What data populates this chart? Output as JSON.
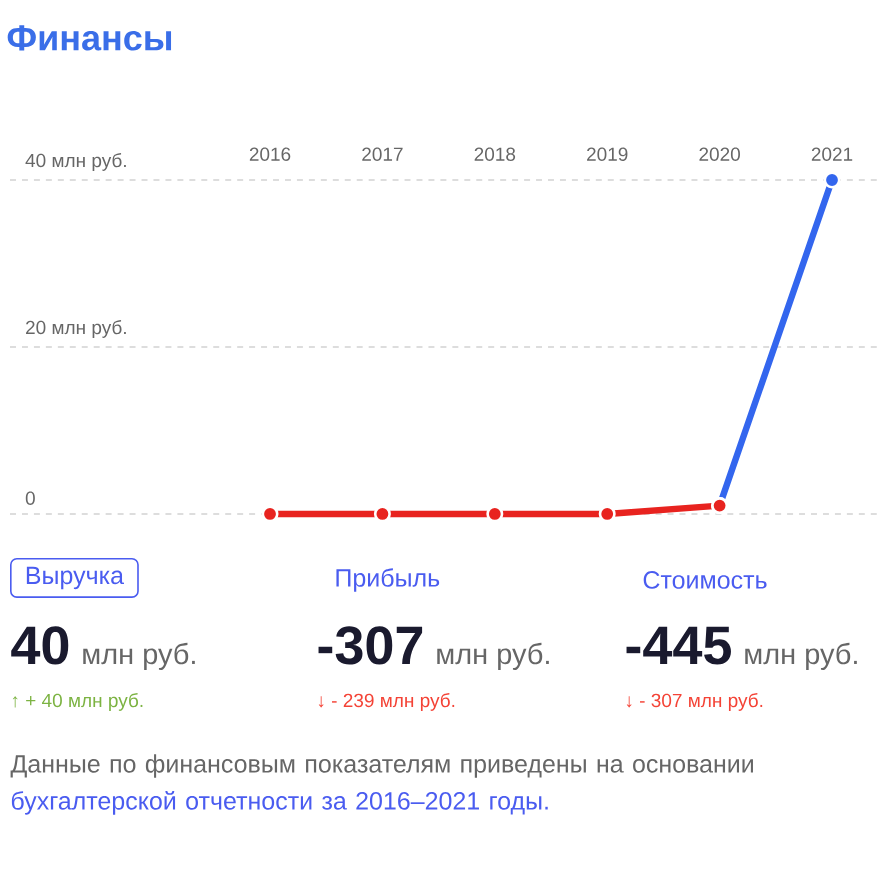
{
  "chart_data": {
    "type": "line",
    "title": "Финансы",
    "categories": [
      "2016",
      "2017",
      "2018",
      "2019",
      "2020",
      "2021"
    ],
    "series": [
      {
        "color": "#3366ee",
        "values": [
          null,
          null,
          null,
          null,
          1,
          40
        ]
      },
      {
        "color": "#e8231f",
        "values": [
          0,
          0,
          0,
          0,
          1,
          null
        ]
      }
    ],
    "ylim": [
      0,
      40
    ],
    "yticks": [
      0,
      {
        "value": 20,
        "label": "20 млн руб."
      },
      {
        "value": 40,
        "label": "40 млн руб."
      }
    ],
    "grid": "y",
    "marker": "circle",
    "line_style": "solid",
    "annotations": [
      "Выручка",
      "Прибыль",
      "Стоимость",
      "40",
      "млн руб.",
      "-307",
      "млн руб.",
      "-445",
      "млн руб.",
      "↑ + 40 млн руб.",
      "↓ - 239 млн руб.",
      "↓ - 307 млн руб.",
      "Данные по финансовым показателям приведены на основании",
      "бухгалтерской отчетности за 2016–2021 годы."
    ]
  }
}
